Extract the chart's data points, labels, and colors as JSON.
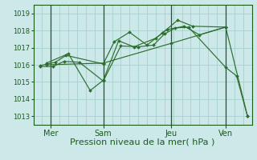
{
  "title": "",
  "xlabel": "Pression niveau de la mer( hPa )",
  "ylabel": "",
  "bg_color": "#cce8e8",
  "grid_color": "#a8d0d0",
  "line_color": "#2d6e2d",
  "dark_line_color": "#1a5c1a",
  "xlim": [
    0,
    10
  ],
  "ylim": [
    1012.5,
    1019.5
  ],
  "yticks": [
    1013,
    1014,
    1015,
    1016,
    1017,
    1018,
    1019
  ],
  "xtick_positions": [
    0.8,
    3.2,
    6.3,
    8.8
  ],
  "xtick_labels": [
    "Mer",
    "Sam",
    "Jeu",
    "Ven"
  ],
  "vline_positions": [
    0.8,
    3.2,
    6.3,
    8.8
  ],
  "series": [
    {
      "x": [
        0.3,
        0.9,
        1.4,
        2.1,
        3.2,
        4.0,
        4.8,
        5.5,
        6.0,
        6.5,
        7.1,
        8.8,
        9.3,
        9.8
      ],
      "y": [
        1015.9,
        1015.9,
        1016.2,
        1016.15,
        1015.05,
        1017.1,
        1017.05,
        1017.15,
        1017.8,
        1018.15,
        1018.2,
        1015.85,
        1015.35,
        1013.0
      ]
    },
    {
      "x": [
        0.3,
        1.0,
        1.5,
        3.2,
        3.7,
        4.4,
        5.2,
        5.9,
        6.6,
        7.3,
        8.8
      ],
      "y": [
        1015.95,
        1016.15,
        1016.55,
        1016.05,
        1017.35,
        1017.9,
        1017.15,
        1017.85,
        1018.6,
        1018.25,
        1018.2
      ]
    },
    {
      "x": [
        0.6,
        1.6,
        2.6,
        3.2,
        3.9,
        4.6,
        5.6,
        6.1,
        6.9,
        7.6,
        8.8
      ],
      "y": [
        1016.1,
        1016.65,
        1014.5,
        1015.1,
        1017.4,
        1017.05,
        1017.55,
        1018.05,
        1018.25,
        1017.75,
        1018.2
      ]
    },
    {
      "x": [
        0.6,
        3.2,
        6.3,
        8.8,
        9.8
      ],
      "y": [
        1016.0,
        1016.1,
        1017.25,
        1018.2,
        1013.0
      ]
    }
  ],
  "xlabel_fontsize": 8,
  "ytick_fontsize": 6,
  "xtick_fontsize": 7
}
